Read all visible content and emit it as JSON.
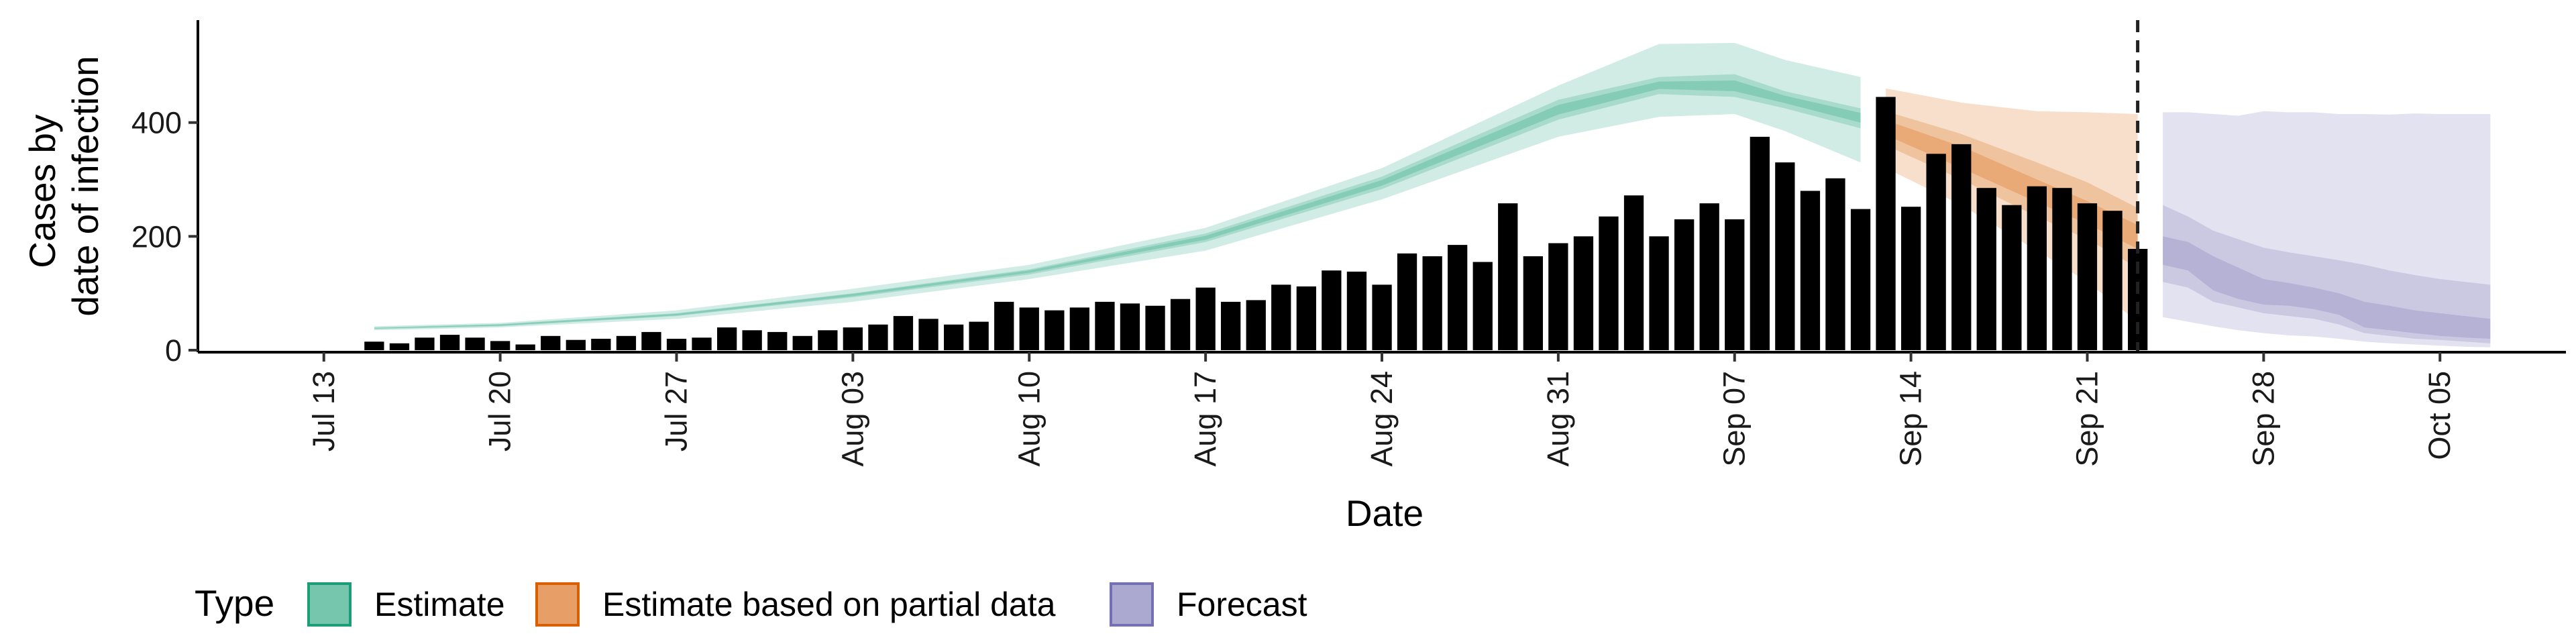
{
  "chart_data": {
    "type": "bar",
    "xlabel": "Date",
    "ylabel_lines": [
      "Cases by",
      "date of infection"
    ],
    "ylim": [
      0,
      580
    ],
    "y_ticks": [
      0,
      200,
      400
    ],
    "x_ticks": [
      {
        "date": "2020-07-13",
        "label": "Jul 13"
      },
      {
        "date": "2020-07-20",
        "label": "Jul 20"
      },
      {
        "date": "2020-07-27",
        "label": "Jul 27"
      },
      {
        "date": "2020-08-03",
        "label": "Aug 03"
      },
      {
        "date": "2020-08-10",
        "label": "Aug 10"
      },
      {
        "date": "2020-08-17",
        "label": "Aug 17"
      },
      {
        "date": "2020-08-24",
        "label": "Aug 24"
      },
      {
        "date": "2020-08-31",
        "label": "Aug 31"
      },
      {
        "date": "2020-09-07",
        "label": "Sep 07"
      },
      {
        "date": "2020-09-14",
        "label": "Sep 14"
      },
      {
        "date": "2020-09-21",
        "label": "Sep 21"
      },
      {
        "date": "2020-09-28",
        "label": "Sep 28"
      },
      {
        "date": "2020-10-05",
        "label": "Oct 05"
      }
    ],
    "x_range": [
      "2020-07-08",
      "2020-10-10"
    ],
    "vline_date": "2020-09-23",
    "bar_color": "#bebebe",
    "bars": {
      "start_date": "2020-07-15",
      "values": [
        15,
        12,
        22,
        27,
        22,
        16,
        10,
        25,
        18,
        20,
        25,
        32,
        20,
        22,
        40,
        35,
        32,
        25,
        35,
        40,
        45,
        60,
        55,
        45,
        50,
        85,
        75,
        70,
        75,
        85,
        82,
        78,
        90,
        110,
        85,
        88,
        115,
        112,
        140,
        138,
        115,
        170,
        165,
        185,
        155,
        258,
        165,
        188,
        200,
        235,
        272,
        200,
        230,
        258,
        230,
        375,
        330,
        280,
        302,
        248,
        445,
        252,
        345,
        362,
        285,
        255,
        288,
        285,
        258,
        245,
        178
      ]
    },
    "series": [
      {
        "name": "Estimate",
        "color": "#1b9e77",
        "band_dates": [
          "2020-07-15",
          "2020-07-20",
          "2020-07-27",
          "2020-08-03",
          "2020-08-10",
          "2020-08-17",
          "2020-08-24",
          "2020-08-31",
          "2020-09-04",
          "2020-09-07",
          "2020-09-09",
          "2020-09-12"
        ],
        "outer_lo": [
          35,
          40,
          55,
          85,
          125,
          175,
          265,
          375,
          410,
          415,
          385,
          330
        ],
        "outer_hi": [
          42,
          48,
          70,
          108,
          150,
          215,
          320,
          465,
          538,
          540,
          510,
          480
        ],
        "mid_lo": [
          37,
          42,
          60,
          93,
          133,
          190,
          283,
          405,
          450,
          445,
          425,
          390
        ],
        "mid_hi": [
          40,
          46,
          65,
          100,
          142,
          205,
          305,
          440,
          480,
          485,
          455,
          425
        ],
        "inner_lo": [
          38,
          43,
          61,
          95,
          136,
          194,
          289,
          414,
          459,
          455,
          434,
          400
        ],
        "inner_hi": [
          39,
          45,
          64,
          99,
          140,
          201,
          299,
          431,
          472,
          474,
          447,
          417
        ]
      },
      {
        "name": "Estimate based on partial data",
        "color": "#d95f02",
        "band_dates": [
          "2020-09-13",
          "2020-09-16",
          "2020-09-19",
          "2020-09-21",
          "2020-09-23"
        ],
        "outer_lo": [
          320,
          255,
          175,
          120,
          50
        ],
        "outer_hi": [
          460,
          435,
          420,
          418,
          415
        ],
        "mid_lo": [
          360,
          300,
          235,
          195,
          145
        ],
        "mid_hi": [
          420,
          380,
          330,
          295,
          250
        ],
        "inner_lo": [
          378,
          320,
          260,
          222,
          178
        ],
        "inner_hi": [
          404,
          358,
          300,
          262,
          220
        ]
      },
      {
        "name": "Forecast",
        "color": "#7570b3",
        "band_dates": [
          "2020-09-24",
          "2020-09-25",
          "2020-09-26",
          "2020-09-27",
          "2020-09-28",
          "2020-09-29",
          "2020-09-30",
          "2020-10-01",
          "2020-10-02",
          "2020-10-03",
          "2020-10-04",
          "2020-10-05",
          "2020-10-06",
          "2020-10-07"
        ],
        "outer_lo": [
          58,
          50,
          42,
          35,
          30,
          26,
          24,
          20,
          15,
          12,
          10,
          8,
          6,
          5
        ],
        "outer_hi": [
          418,
          418,
          415,
          412,
          420,
          418,
          418,
          415,
          415,
          414,
          416,
          415,
          415,
          415
        ],
        "mid_lo": [
          120,
          110,
          85,
          75,
          65,
          60,
          55,
          45,
          30,
          25,
          20,
          18,
          15,
          12
        ],
        "mid_hi": [
          255,
          235,
          210,
          195,
          180,
          172,
          165,
          158,
          150,
          140,
          132,
          125,
          120,
          115
        ],
        "inner_lo": [
          150,
          140,
          105,
          90,
          80,
          78,
          72,
          62,
          40,
          35,
          30,
          25,
          22,
          20
        ],
        "inner_hi": [
          200,
          190,
          165,
          145,
          125,
          118,
          110,
          100,
          85,
          78,
          70,
          65,
          60,
          55
        ]
      }
    ],
    "legend": {
      "title": "Type",
      "position": "bottom",
      "items": [
        "Estimate",
        "Estimate based on partial data",
        "Forecast"
      ]
    }
  }
}
